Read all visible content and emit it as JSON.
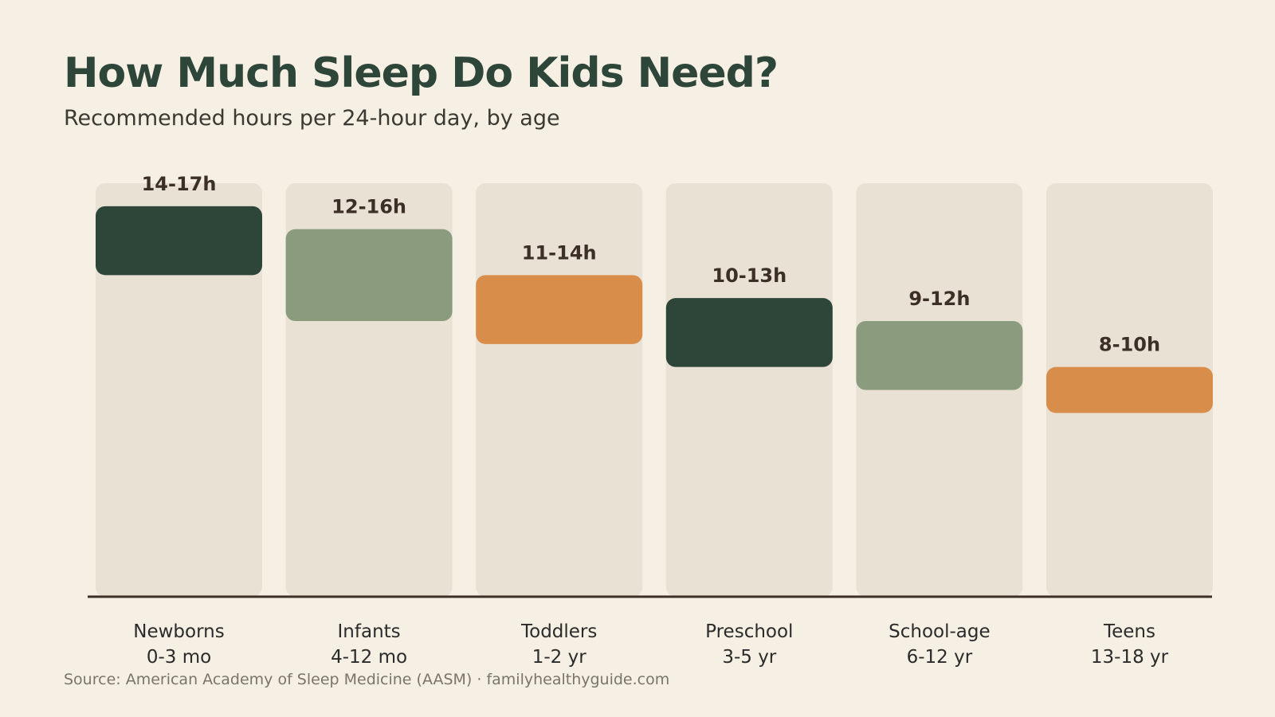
{
  "title": "How Much Sleep Do Kids Need?",
  "subtitle": "Recommended hours per 24-hour day, by age",
  "source": "Source: American Academy of Sleep Medicine (AASM) · familyhealthyguide.com",
  "colors": {
    "background": "#f5efe4",
    "column": "#e9e1d3",
    "dark_green": "#2e4539",
    "sage": "#8b9b7e",
    "orange": "#d98d4a",
    "axis": "#3b2f26"
  },
  "chart_data": {
    "type": "bar",
    "subtype": "floating-range",
    "title": "How Much Sleep Do Kids Need?",
    "subtitle": "Recommended hours per 24-hour day, by age",
    "ylim": [
      0,
      18
    ],
    "grid": false,
    "categories": [
      {
        "name": "Newborns",
        "age": "0-3 mo"
      },
      {
        "name": "Infants",
        "age": "4-12 mo"
      },
      {
        "name": "Toddlers",
        "age": "1-2 yr"
      },
      {
        "name": "Preschool",
        "age": "3-5 yr"
      },
      {
        "name": "School-age",
        "age": "6-12 yr"
      },
      {
        "name": "Teens",
        "age": "13-18 yr"
      }
    ],
    "ranges": [
      {
        "min": 14,
        "max": 17,
        "label": "14-17h",
        "color": "#2e4539"
      },
      {
        "min": 12,
        "max": 16,
        "label": "12-16h",
        "color": "#8b9b7e"
      },
      {
        "min": 11,
        "max": 14,
        "label": "11-14h",
        "color": "#d98d4a"
      },
      {
        "min": 10,
        "max": 13,
        "label": "10-13h",
        "color": "#2e4539"
      },
      {
        "min": 9,
        "max": 12,
        "label": "9-12h",
        "color": "#8b9b7e"
      },
      {
        "min": 8,
        "max": 10,
        "label": "8-10h",
        "color": "#d98d4a"
      }
    ]
  }
}
